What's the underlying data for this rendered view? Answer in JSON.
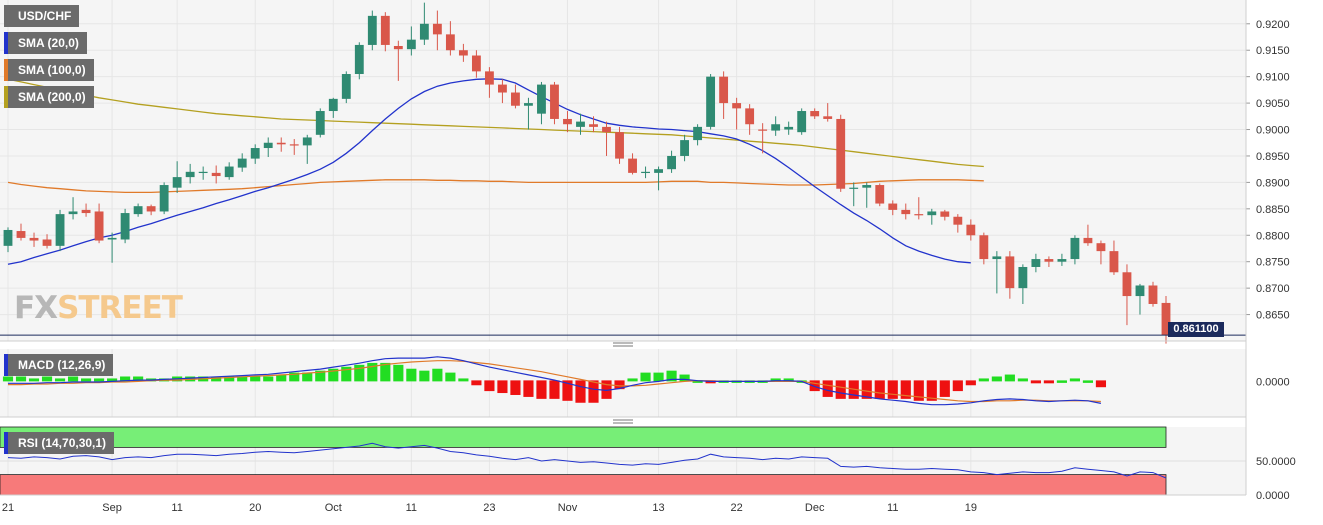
{
  "colors": {
    "bull": "#2f8a72",
    "bear": "#d9574a",
    "sma20": "#2233cc",
    "sma100": "#e07a2a",
    "sma200": "#b4a020",
    "macd_line": "#2233cc",
    "signal_line": "#e07a2a",
    "hist_pos": "#22dd22",
    "hist_neg": "#ee1111",
    "rsi_line": "#2233cc",
    "rsi_overbought": "#77ee77",
    "rsi_oversold": "#f77a7a",
    "price_line": "#1b2a5c"
  },
  "price_panel": {
    "symbol": "USD/CHF",
    "indicators": [
      "SMA (20,0)",
      "SMA (100,0)",
      "SMA (200,0)"
    ],
    "current_price": "0.861100",
    "brand_fx": "FX",
    "brand_street": "STREET"
  },
  "macd_panel": {
    "label": "MACD (12,26,9)"
  },
  "rsi_panel": {
    "label": "RSI (14,70,30,1)"
  },
  "chart_data": [
    {
      "type": "candlestick",
      "yticks": [
        "0.9200",
        "0.9150",
        "0.9100",
        "0.9050",
        "0.9000",
        "0.8950",
        "0.8900",
        "0.8850",
        "0.8800",
        "0.8750",
        "0.8700",
        "0.8650"
      ],
      "ylim": [
        0.86,
        0.9245
      ],
      "xlabels": [
        {
          "label": "21",
          "i": 0
        },
        {
          "label": "Sep",
          "i": 8
        },
        {
          "label": "11",
          "i": 13
        },
        {
          "label": "20",
          "i": 19
        },
        {
          "label": "Oct",
          "i": 25
        },
        {
          "label": "11",
          "i": 31
        },
        {
          "label": "23",
          "i": 37
        },
        {
          "label": "Nov",
          "i": 43
        },
        {
          "label": "13",
          "i": 50
        },
        {
          "label": "22",
          "i": 56
        },
        {
          "label": "Dec",
          "i": 62
        },
        {
          "label": "11",
          "i": 68
        },
        {
          "label": "19",
          "i": 74
        }
      ],
      "candles": [
        [
          0.878,
          0.8815,
          0.8768,
          0.881
        ],
        [
          0.8808,
          0.8822,
          0.879,
          0.8795
        ],
        [
          0.8795,
          0.8805,
          0.8778,
          0.879
        ],
        [
          0.8792,
          0.8802,
          0.8775,
          0.878
        ],
        [
          0.878,
          0.8848,
          0.877,
          0.884
        ],
        [
          0.884,
          0.8872,
          0.883,
          0.8845
        ],
        [
          0.8848,
          0.886,
          0.8835,
          0.8842
        ],
        [
          0.8845,
          0.886,
          0.8785,
          0.879
        ],
        [
          0.8792,
          0.8805,
          0.8748,
          0.8795
        ],
        [
          0.8792,
          0.885,
          0.8785,
          0.8842
        ],
        [
          0.884,
          0.886,
          0.8835,
          0.8855
        ],
        [
          0.8855,
          0.8858,
          0.8838,
          0.8845
        ],
        [
          0.8845,
          0.89,
          0.884,
          0.8895
        ],
        [
          0.889,
          0.894,
          0.888,
          0.891
        ],
        [
          0.891,
          0.8935,
          0.8898,
          0.892
        ],
        [
          0.8918,
          0.893,
          0.8905,
          0.892
        ],
        [
          0.8918,
          0.8932,
          0.8898,
          0.8912
        ],
        [
          0.891,
          0.8938,
          0.8905,
          0.893
        ],
        [
          0.8928,
          0.8955,
          0.892,
          0.8945
        ],
        [
          0.8945,
          0.8972,
          0.8935,
          0.8965
        ],
        [
          0.8965,
          0.8985,
          0.8948,
          0.8975
        ],
        [
          0.8975,
          0.8985,
          0.8958,
          0.8972
        ],
        [
          0.8972,
          0.8982,
          0.8952,
          0.897
        ],
        [
          0.897,
          0.899,
          0.8935,
          0.8985
        ],
        [
          0.899,
          0.904,
          0.8985,
          0.9035
        ],
        [
          0.9035,
          0.906,
          0.9022,
          0.9058
        ],
        [
          0.9058,
          0.911,
          0.905,
          0.9105
        ],
        [
          0.9105,
          0.9165,
          0.9095,
          0.916
        ],
        [
          0.916,
          0.9225,
          0.915,
          0.9215
        ],
        [
          0.9215,
          0.9222,
          0.9148,
          0.916
        ],
        [
          0.9158,
          0.9168,
          0.9092,
          0.9152
        ],
        [
          0.9152,
          0.9195,
          0.914,
          0.917
        ],
        [
          0.917,
          0.924,
          0.916,
          0.92
        ],
        [
          0.92,
          0.9225,
          0.915,
          0.918
        ],
        [
          0.918,
          0.9205,
          0.914,
          0.915
        ],
        [
          0.915,
          0.9162,
          0.9128,
          0.914
        ],
        [
          0.914,
          0.915,
          0.9098,
          0.911
        ],
        [
          0.911,
          0.9118,
          0.906,
          0.9085
        ],
        [
          0.9085,
          0.9095,
          0.905,
          0.907
        ],
        [
          0.907,
          0.9085,
          0.904,
          0.9045
        ],
        [
          0.9045,
          0.906,
          0.9,
          0.905
        ],
        [
          0.903,
          0.909,
          0.901,
          0.9085
        ],
        [
          0.9085,
          0.909,
          0.901,
          0.902
        ],
        [
          0.902,
          0.9035,
          0.8995,
          0.901
        ],
        [
          0.9005,
          0.903,
          0.899,
          0.9015
        ],
        [
          0.901,
          0.9025,
          0.8995,
          0.9005
        ],
        [
          0.9005,
          0.9015,
          0.895,
          0.8995
        ],
        [
          0.8995,
          0.9005,
          0.8935,
          0.8945
        ],
        [
          0.8945,
          0.8955,
          0.8915,
          0.8918
        ],
        [
          0.8918,
          0.893,
          0.8908,
          0.892
        ],
        [
          0.8918,
          0.893,
          0.8885,
          0.8925
        ],
        [
          0.8925,
          0.896,
          0.8918,
          0.895
        ],
        [
          0.895,
          0.899,
          0.894,
          0.898
        ],
        [
          0.898,
          0.901,
          0.897,
          0.9005
        ],
        [
          0.9005,
          0.9105,
          0.9,
          0.91
        ],
        [
          0.91,
          0.911,
          0.902,
          0.905
        ],
        [
          0.905,
          0.906,
          0.9,
          0.904
        ],
        [
          0.904,
          0.9048,
          0.899,
          0.901
        ],
        [
          0.9,
          0.9012,
          0.8955,
          0.8998
        ],
        [
          0.8998,
          0.9025,
          0.8988,
          0.901
        ],
        [
          0.9,
          0.9015,
          0.899,
          0.9005
        ],
        [
          0.8995,
          0.904,
          0.899,
          0.9035
        ],
        [
          0.9035,
          0.904,
          0.902,
          0.9025
        ],
        [
          0.9025,
          0.905,
          0.9015,
          0.902
        ],
        [
          0.902,
          0.9028,
          0.8882,
          0.8888
        ],
        [
          0.8888,
          0.89,
          0.8855,
          0.889
        ],
        [
          0.889,
          0.89,
          0.8852,
          0.8895
        ],
        [
          0.8895,
          0.8898,
          0.8855,
          0.886
        ],
        [
          0.886,
          0.8866,
          0.8838,
          0.8848
        ],
        [
          0.8848,
          0.886,
          0.883,
          0.884
        ],
        [
          0.884,
          0.8872,
          0.883,
          0.8838
        ],
        [
          0.8838,
          0.885,
          0.882,
          0.8845
        ],
        [
          0.8845,
          0.8848,
          0.8828,
          0.8835
        ],
        [
          0.8835,
          0.884,
          0.8805,
          0.882
        ],
        [
          0.882,
          0.883,
          0.879,
          0.88
        ],
        [
          0.88,
          0.8805,
          0.8745,
          0.8755
        ],
        [
          0.8755,
          0.877,
          0.869,
          0.876
        ],
        [
          0.876,
          0.877,
          0.868,
          0.87
        ],
        [
          0.87,
          0.8745,
          0.867,
          0.874
        ],
        [
          0.874,
          0.8765,
          0.873,
          0.8755
        ],
        [
          0.8755,
          0.876,
          0.874,
          0.875
        ],
        [
          0.875,
          0.8765,
          0.8742,
          0.8755
        ],
        [
          0.8755,
          0.88,
          0.8745,
          0.8795
        ],
        [
          0.8795,
          0.882,
          0.878,
          0.8785
        ],
        [
          0.8785,
          0.879,
          0.8745,
          0.877
        ],
        [
          0.877,
          0.879,
          0.8725,
          0.873
        ],
        [
          0.873,
          0.8745,
          0.863,
          0.8685
        ],
        [
          0.8685,
          0.8708,
          0.865,
          0.8705
        ],
        [
          0.8705,
          0.8712,
          0.8665,
          0.867
        ],
        [
          0.8672,
          0.8685,
          0.8595,
          0.8611
        ]
      ],
      "sma20": [
        0.8745,
        0.875,
        0.8758,
        0.8765,
        0.8772,
        0.878,
        0.8788,
        0.8795,
        0.88,
        0.8807,
        0.8815,
        0.8822,
        0.883,
        0.8838,
        0.8845,
        0.8852,
        0.886,
        0.8867,
        0.8875,
        0.8883,
        0.889,
        0.8898,
        0.8906,
        0.8915,
        0.8925,
        0.8938,
        0.8955,
        0.8975,
        0.8998,
        0.902,
        0.904,
        0.9058,
        0.9072,
        0.9082,
        0.9088,
        0.9092,
        0.9095,
        0.9096,
        0.9095,
        0.9088,
        0.9075,
        0.9062,
        0.905,
        0.9038,
        0.9028,
        0.902,
        0.9012,
        0.9008,
        0.9005,
        0.9003,
        0.9001,
        0.9,
        0.8998,
        0.8996,
        0.8992,
        0.8988,
        0.8982,
        0.8972,
        0.896,
        0.8945,
        0.8928,
        0.891,
        0.8892,
        0.8875,
        0.8858,
        0.8842,
        0.8828,
        0.8812,
        0.8795,
        0.878,
        0.877,
        0.8762,
        0.8755,
        0.875,
        0.8748
      ],
      "sma100": [
        0.89,
        0.8896,
        0.8893,
        0.889,
        0.8888,
        0.8886,
        0.8884,
        0.8883,
        0.8882,
        0.8881,
        0.8881,
        0.8881,
        0.8882,
        0.8883,
        0.8884,
        0.8885,
        0.8886,
        0.8887,
        0.8888,
        0.889,
        0.8892,
        0.8894,
        0.8896,
        0.8898,
        0.89,
        0.8901,
        0.8902,
        0.8903,
        0.8904,
        0.8905,
        0.8905,
        0.8905,
        0.8905,
        0.8904,
        0.8904,
        0.8903,
        0.8903,
        0.8902,
        0.8902,
        0.8901,
        0.89,
        0.89,
        0.89,
        0.89,
        0.89,
        0.89,
        0.89,
        0.89,
        0.89,
        0.89,
        0.8901,
        0.8902,
        0.8902,
        0.8902,
        0.89,
        0.89,
        0.8899,
        0.8898,
        0.8897,
        0.8896,
        0.8895,
        0.8895,
        0.8895,
        0.8896,
        0.8897,
        0.8898,
        0.89,
        0.8902,
        0.8903,
        0.8904,
        0.8905,
        0.8905,
        0.8905,
        0.8905,
        0.8904,
        0.8903
      ],
      "sma200": [
        0.9095,
        0.909,
        0.9085,
        0.908,
        0.9075,
        0.907,
        0.9065,
        0.906,
        0.9056,
        0.9052,
        0.9048,
        0.9045,
        0.9042,
        0.9039,
        0.9036,
        0.9033,
        0.903,
        0.9028,
        0.9026,
        0.9024,
        0.9022,
        0.902,
        0.9019,
        0.9018,
        0.9017,
        0.9016,
        0.9015,
        0.9014,
        0.9013,
        0.9012,
        0.9011,
        0.901,
        0.9009,
        0.9008,
        0.9007,
        0.9006,
        0.9005,
        0.9004,
        0.9003,
        0.9002,
        0.9001,
        0.9,
        0.8999,
        0.8998,
        0.8997,
        0.8996,
        0.8995,
        0.8994,
        0.8993,
        0.8992,
        0.8991,
        0.899,
        0.8988,
        0.8986,
        0.8984,
        0.8982,
        0.898,
        0.8978,
        0.8976,
        0.8974,
        0.8972,
        0.897,
        0.8967,
        0.8964,
        0.8961,
        0.8958,
        0.8955,
        0.8952,
        0.8949,
        0.8946,
        0.8943,
        0.894,
        0.8937,
        0.8934,
        0.8932,
        0.893
      ]
    },
    {
      "type": "line",
      "yticks": [
        "0.0000"
      ],
      "ylim": [
        -0.0055,
        0.005
      ],
      "macd": [
        -0.0003,
        -0.0003,
        -0.0003,
        -0.0002,
        -0.0002,
        -0.0001,
        -0.0001,
        -0.0001,
        0.0,
        0.0001,
        0.0002,
        0.0002,
        0.0003,
        0.0004,
        0.0005,
        0.0006,
        0.0007,
        0.0008,
        0.0009,
        0.001,
        0.0011,
        0.0013,
        0.0015,
        0.0017,
        0.0019,
        0.0022,
        0.0025,
        0.0028,
        0.0032,
        0.0035,
        0.0036,
        0.0036,
        0.0036,
        0.0038,
        0.0036,
        0.0032,
        0.0027,
        0.0022,
        0.0018,
        0.0014,
        0.001,
        0.0006,
        0.0002,
        -0.0003,
        -0.0008,
        -0.0012,
        -0.0014,
        -0.0011,
        -0.0006,
        -0.0002,
        0.0,
        0.0003,
        0.0003,
        0.0001,
        0.0,
        0.0,
        0.0,
        0.0,
        0.0,
        0.0001,
        0.0001,
        0.0,
        -0.0008,
        -0.0014,
        -0.0018,
        -0.0021,
        -0.0024,
        -0.0027,
        -0.0029,
        -0.0031,
        -0.0034,
        -0.0036,
        -0.0036,
        -0.0035,
        -0.0033,
        -0.003,
        -0.0028,
        -0.0027,
        -0.0028,
        -0.003,
        -0.0031,
        -0.003,
        -0.0029,
        -0.003,
        -0.0034
      ],
      "signal": [
        -0.0005,
        -0.0005,
        -0.0004,
        -0.0004,
        -0.0003,
        -0.0003,
        -0.0002,
        -0.0002,
        -0.0001,
        -0.0001,
        0.0,
        0.0001,
        0.0002,
        0.0002,
        0.0003,
        0.0004,
        0.0005,
        0.0006,
        0.0007,
        0.0008,
        0.0009,
        0.001,
        0.0011,
        0.0013,
        0.0014,
        0.0016,
        0.0018,
        0.002,
        0.0023,
        0.0026,
        0.0028,
        0.003,
        0.0031,
        0.0032,
        0.0032,
        0.0031,
        0.0029,
        0.0027,
        0.0024,
        0.0021,
        0.0018,
        0.0015,
        0.0011,
        0.0007,
        0.0003,
        -0.0001,
        -0.0005,
        -0.0007,
        -0.0007,
        -0.0006,
        -0.0004,
        -0.0002,
        0.0,
        0.0001,
        0.0001,
        0.0,
        0.0,
        0.0,
        0.0,
        0.0,
        0.0,
        0.0,
        -0.0003,
        -0.0006,
        -0.0009,
        -0.0012,
        -0.0015,
        -0.0018,
        -0.002,
        -0.0022,
        -0.0024,
        -0.0026,
        -0.0028,
        -0.003,
        -0.0031,
        -0.0031,
        -0.003,
        -0.003,
        -0.0029,
        -0.0029,
        -0.003,
        -0.003,
        -0.003,
        -0.003,
        -0.0031
      ]
    },
    {
      "type": "line",
      "yticks": [
        "50.0000",
        "0.0000"
      ],
      "ylim": [
        0,
        100
      ],
      "overbought": 70,
      "oversold": 30,
      "rsi": [
        55,
        54,
        56,
        55,
        53,
        57,
        58,
        56,
        52,
        55,
        56,
        55,
        58,
        60,
        60,
        59,
        58,
        60,
        61,
        63,
        64,
        63,
        62,
        64,
        66,
        68,
        70,
        72,
        76,
        71,
        69,
        71,
        73,
        69,
        64,
        62,
        59,
        57,
        54,
        52,
        55,
        50,
        52,
        50,
        48,
        49,
        47,
        45,
        44,
        46,
        45,
        48,
        51,
        53,
        60,
        56,
        55,
        54,
        52,
        54,
        53,
        56,
        55,
        54,
        42,
        41,
        42,
        40,
        39,
        38,
        38,
        39,
        38,
        37,
        34,
        33,
        30,
        32,
        34,
        33,
        33,
        35,
        40,
        38,
        36,
        34,
        28,
        34,
        33,
        25
      ]
    }
  ]
}
